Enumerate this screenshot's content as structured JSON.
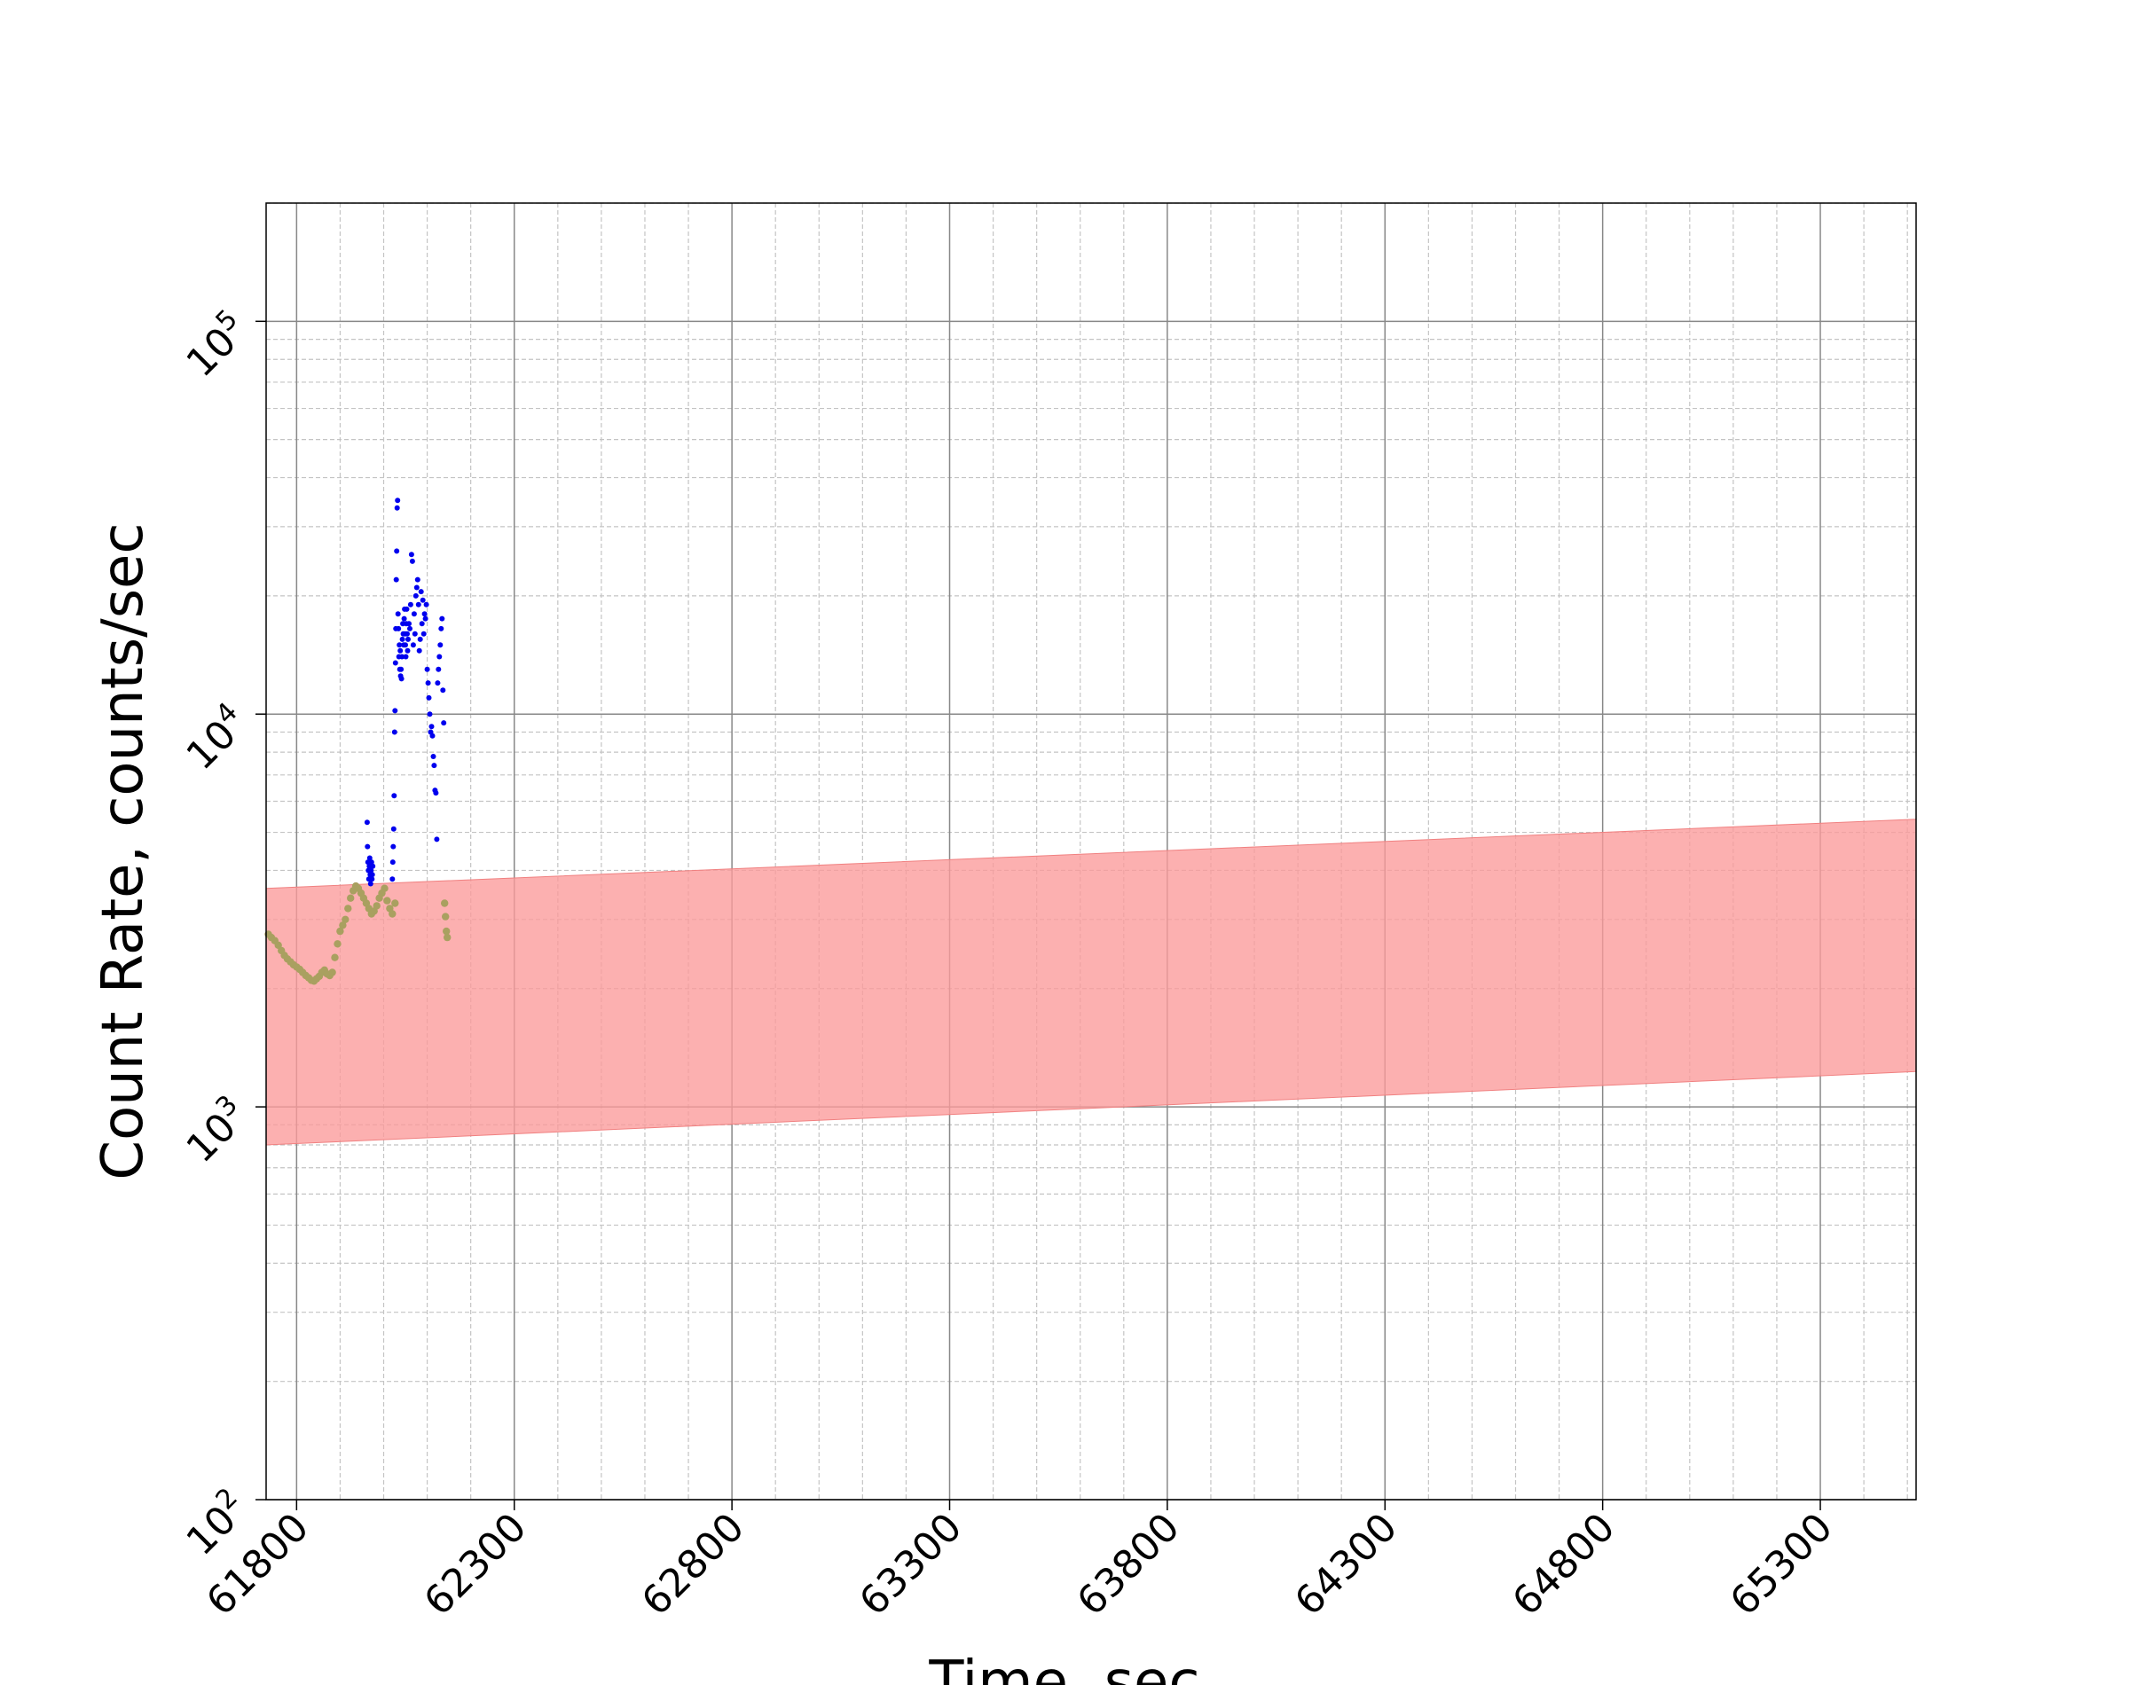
{
  "chart_data": {
    "type": "scatter",
    "title": "",
    "xlabel": "Time, sec",
    "ylabel": "Count Rate, counts/sec",
    "xlim": [
      61730,
      65520
    ],
    "ylim": [
      100,
      200000
    ],
    "yscale": "log",
    "grid": true,
    "grid_minor": true,
    "legend": "none",
    "x_ticks": [
      61800,
      62300,
      62800,
      63300,
      63800,
      64300,
      64800,
      65300
    ],
    "x_tick_labels": [
      "61800",
      "62300",
      "62800",
      "63300",
      "63800",
      "64300",
      "64800",
      "65300"
    ],
    "y_ticks": [
      100,
      1000,
      10000,
      100000
    ],
    "y_tick_labels": [
      {
        "base": "10",
        "exp": "2"
      },
      {
        "base": "10",
        "exp": "3"
      },
      {
        "base": "10",
        "exp": "4"
      },
      {
        "base": "10",
        "exp": "5"
      }
    ],
    "colors": {
      "band": "#fb9a9a",
      "background_points": "#a9a060",
      "burst_points": "#0000ee",
      "grid_major": "#888888",
      "grid_minor": "#c4c4c4"
    },
    "band": {
      "x": [
        61730,
        65520
      ],
      "lower": [
        800,
        1230
      ],
      "upper": [
        3600,
        5400
      ]
    },
    "series": [
      {
        "x": [
          61735,
          61742,
          61750,
          61758,
          61765,
          61772,
          61779,
          61786,
          61793,
          61800,
          61807,
          61814,
          61821,
          61828,
          61834,
          61840,
          61846,
          61852,
          61858,
          61864,
          61870,
          61876,
          61882,
          61888,
          61894,
          61900,
          61906,
          61912,
          61918,
          61924,
          61930,
          61936,
          61942,
          61948,
          61954,
          61960,
          61966,
          61972,
          61978,
          61984,
          61990,
          61996,
          62002,
          62008,
          62014,
          62020,
          62026,
          62140,
          62142,
          62144,
          62146
        ],
        "y": [
          2750,
          2700,
          2650,
          2580,
          2500,
          2430,
          2380,
          2340,
          2300,
          2270,
          2240,
          2200,
          2160,
          2130,
          2100,
          2090,
          2120,
          2150,
          2200,
          2230,
          2180,
          2160,
          2200,
          2400,
          2600,
          2800,
          2900,
          3000,
          3200,
          3400,
          3550,
          3650,
          3600,
          3500,
          3400,
          3300,
          3200,
          3100,
          3150,
          3250,
          3400,
          3500,
          3600,
          3350,
          3200,
          3100,
          3300,
          3300,
          3050,
          2800,
          2700
        ]
      },
      {
        "x": [
          61962,
          61963,
          61964,
          61965,
          61966,
          61967,
          61968,
          61969,
          61970,
          61971,
          61972,
          61973,
          61974,
          61975,
          62020,
          62021,
          62022,
          62023,
          62024,
          62025,
          62026,
          62027,
          62028,
          62029,
          62030,
          62031,
          62032,
          62033,
          62034,
          62035,
          62036,
          62037,
          62038,
          62039,
          62040,
          62041,
          62042,
          62043,
          62044,
          62045,
          62046,
          62047,
          62048,
          62049,
          62050,
          62051,
          62052,
          62053,
          62054,
          62055,
          62056,
          62058,
          62060,
          62062,
          62064,
          62066,
          62068,
          62070,
          62072,
          62074,
          62076,
          62078,
          62080,
          62082,
          62084,
          62086,
          62088,
          62090,
          62092,
          62094,
          62096,
          62098,
          62100,
          62102,
          62104,
          62106,
          62108,
          62110,
          62112,
          62114,
          62116,
          62118,
          62120,
          62122,
          62124,
          62126,
          62128,
          62130,
          62132,
          62134,
          62136,
          62138
        ],
        "y": [
          5300,
          4600,
          4200,
          4000,
          3800,
          4100,
          4300,
          3900,
          3700,
          4000,
          4200,
          3800,
          3900,
          4100,
          3800,
          4200,
          4600,
          5100,
          6200,
          9000,
          10200,
          13500,
          16500,
          22000,
          26000,
          33500,
          35000,
          18000,
          16500,
          14000,
          15000,
          13000,
          14500,
          12500,
          13000,
          12300,
          14000,
          15500,
          17000,
          16000,
          15000,
          17500,
          18500,
          16000,
          15000,
          14000,
          17000,
          18500,
          16000,
          14500,
          15500,
          17000,
          16500,
          19000,
          25500,
          24500,
          15000,
          18000,
          16000,
          20000,
          21000,
          22000,
          19000,
          14500,
          15500,
          20500,
          17000,
          19500,
          16000,
          18000,
          17500,
          19000,
          13000,
          12000,
          11000,
          10000,
          9000,
          9300,
          8800,
          7800,
          7400,
          6400,
          6300,
          4800,
          12000,
          13000,
          14000,
          15000,
          16500,
          17500,
          11500,
          9500
        ]
      }
    ]
  }
}
